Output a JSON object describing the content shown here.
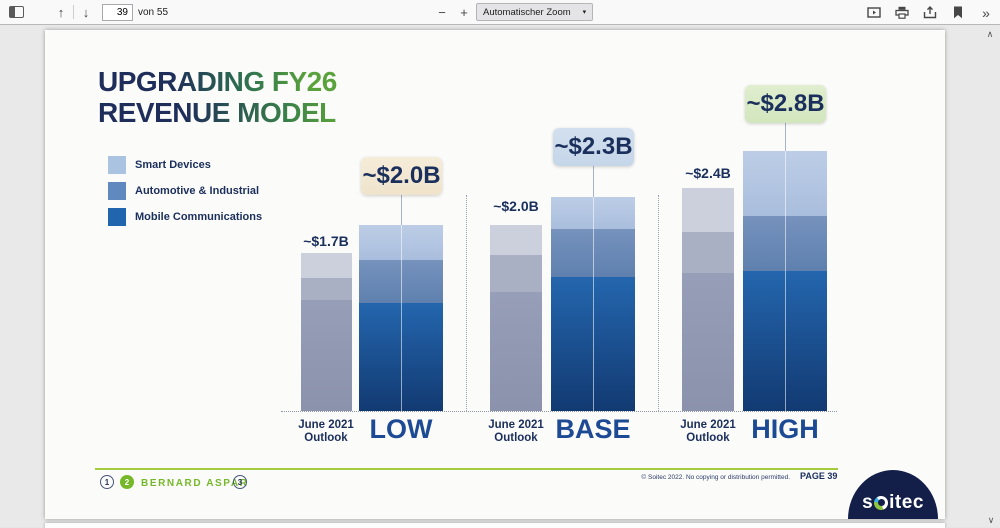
{
  "viewer": {
    "toolbar": {
      "page_input": "39",
      "pages_label": "von 55",
      "zoom_value": "Automatischer Zoom",
      "icons": {
        "sidebar_toggle": "sidebar-toggle",
        "page_up": "↑",
        "page_down": "↓",
        "zoom_out": "−",
        "zoom_in": "+",
        "dropdown_arrow": "▾",
        "more_tools": "»",
        "scroll_up": "∧",
        "scroll_down": "∨"
      }
    }
  },
  "slide": {
    "title_line1": "UPGRADING FY26",
    "title_line2": "REVENUE MODEL",
    "legend": [
      {
        "label": "Smart Devices",
        "color": "#a9c3e0"
      },
      {
        "label": "Automotive & Industrial",
        "color": "#6089c0"
      },
      {
        "label": "Mobile Communications",
        "color": "#2165ae"
      }
    ],
    "footer": {
      "steps": [
        "1",
        "2",
        "3"
      ],
      "active_step": "2",
      "presenter": "BERNARD ASPAR",
      "copyright": "© Soitec 2022. No copying or distribution permitted.",
      "page_label": "PAGE 39",
      "logo": {
        "left": "s",
        "right": "itec",
        "name": "soitec"
      }
    }
  },
  "chart_data": {
    "type": "bar",
    "stacked": true,
    "title": "UPGRADING FY26 REVENUE MODEL",
    "unit": "$B",
    "ylim": [
      0,
      3
    ],
    "grid": false,
    "legend_position": "upper-left",
    "series_names": [
      "Smart Devices",
      "Automotive & Industrial",
      "Mobile Communications"
    ],
    "segment_order_note": "segments listed top-to-bottom: Smart Devices, Automotive & Industrial, Mobile Communications; values estimated from bar heights",
    "groups": [
      {
        "scenario": "LOW",
        "bars": [
          {
            "label": "June 2021\nOutlook",
            "total_label": "~$1.7B",
            "total": 1.7,
            "segments": [
              0.27,
              0.24,
              1.19
            ],
            "style": "outlook"
          },
          {
            "label": "LOW",
            "total_label": "~$2.0B",
            "total": 2.0,
            "segments": [
              0.38,
              0.46,
              1.16
            ],
            "style": "scenario",
            "callout_color": "tan"
          }
        ]
      },
      {
        "scenario": "BASE",
        "bars": [
          {
            "label": "June 2021\nOutlook",
            "total_label": "~$2.0B",
            "total": 2.0,
            "segments": [
              0.32,
              0.4,
              1.28
            ],
            "style": "outlook"
          },
          {
            "label": "BASE",
            "total_label": "~$2.3B",
            "total": 2.3,
            "segments": [
              0.34,
              0.52,
              1.44
            ],
            "style": "scenario",
            "callout_color": "blue"
          }
        ]
      },
      {
        "scenario": "HIGH",
        "bars": [
          {
            "label": "June 2021\nOutlook",
            "total_label": "~$2.4B",
            "total": 2.4,
            "segments": [
              0.48,
              0.44,
              1.48
            ],
            "style": "outlook"
          },
          {
            "label": "HIGH",
            "total_label": "~$2.8B",
            "total": 2.8,
            "segments": [
              0.7,
              0.59,
              1.51
            ],
            "style": "scenario",
            "callout_color": "green"
          }
        ]
      }
    ]
  }
}
